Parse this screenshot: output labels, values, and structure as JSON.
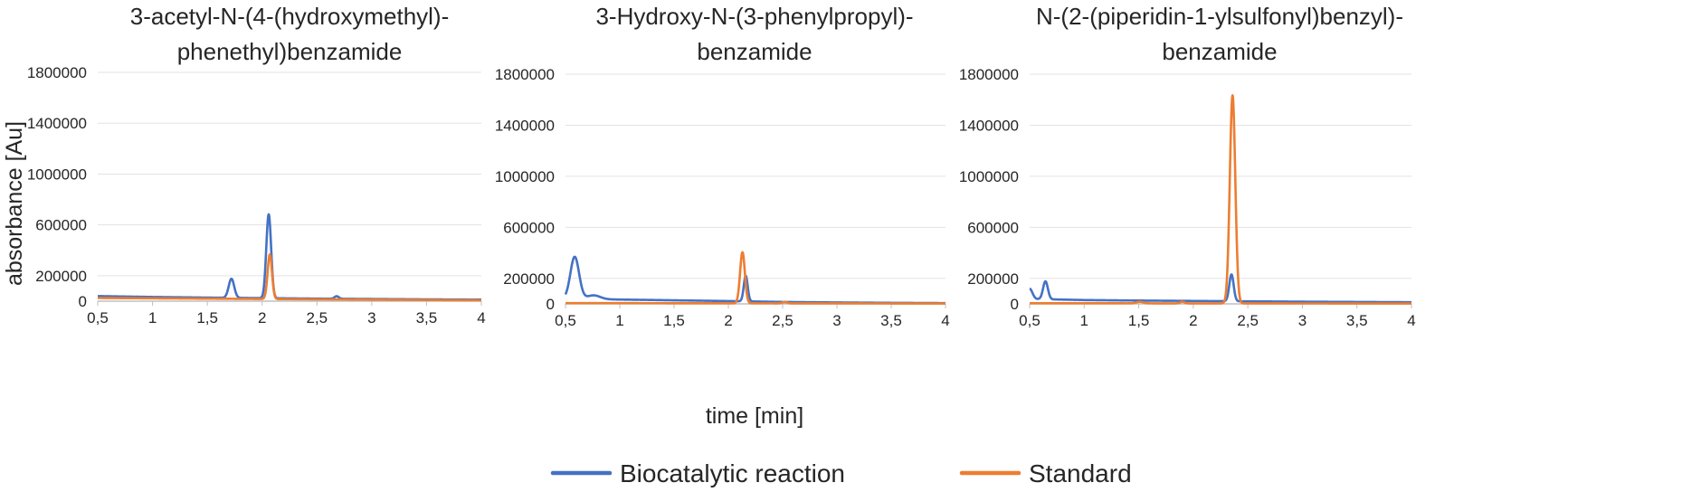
{
  "figure": {
    "ylabel": "absorbance [Au]",
    "xlabel": "time [min]"
  },
  "legend": {
    "placement": "bottom-center",
    "items": [
      {
        "label": "Biocatalytic reaction",
        "color": "#4472C4"
      },
      {
        "label": "Standard",
        "color": "#ED7D31"
      }
    ]
  },
  "chart_data": [
    {
      "type": "line",
      "title_lines": [
        "3-acetyl-N-(4-(hydroxymethyl)-",
        "phenethyl)benzamide"
      ],
      "xlim": [
        0.5,
        4
      ],
      "ylim": [
        0,
        1800000
      ],
      "x_ticks": [
        "0,5",
        "1",
        "1,5",
        "2",
        "2,5",
        "3",
        "3,5",
        "4"
      ],
      "y_ticks": [
        "0",
        "200000",
        "600000",
        "1000000",
        "1400000",
        "1800000"
      ],
      "y_tick_values": [
        0,
        200000,
        600000,
        1000000,
        1400000,
        1800000
      ],
      "grid": true,
      "series": [
        {
          "name": "Biocatalytic reaction",
          "color": "#4472C4",
          "baseline": [
            [
              0.5,
              40000
            ],
            [
              1.0,
              33000
            ],
            [
              1.5,
              28000
            ],
            [
              2.0,
              24000
            ],
            [
              2.5,
              20000
            ],
            [
              3.0,
              17000
            ],
            [
              3.5,
              14000
            ],
            [
              4.0,
              12000
            ]
          ],
          "peaks": [
            {
              "x": 1.72,
              "height": 150000,
              "width": 0.025
            },
            {
              "x": 2.06,
              "height": 660000,
              "width": 0.022
            },
            {
              "x": 2.68,
              "height": 20000,
              "width": 0.02
            }
          ]
        },
        {
          "name": "Standard",
          "color": "#ED7D31",
          "baseline": [
            [
              0.5,
              25000
            ],
            [
              4.0,
              7000
            ]
          ],
          "peaks": [
            {
              "x": 2.07,
              "height": 350000,
              "width": 0.02
            }
          ]
        }
      ]
    },
    {
      "type": "line",
      "title_lines": [
        "3-Hydroxy-N-(3-phenylpropyl)-",
        "benzamide"
      ],
      "xlim": [
        0.5,
        4
      ],
      "ylim": [
        0,
        1800000
      ],
      "x_ticks": [
        "0,5",
        "1",
        "1,5",
        "2",
        "2,5",
        "3",
        "3,5",
        "4"
      ],
      "y_ticks": [
        "0",
        "200000",
        "600000",
        "1000000",
        "1400000",
        "1800000"
      ],
      "y_tick_values": [
        0,
        200000,
        600000,
        1000000,
        1400000,
        1800000
      ],
      "grid": true,
      "series": [
        {
          "name": "Biocatalytic reaction",
          "color": "#4472C4",
          "baseline": [
            [
              0.5,
              40000
            ],
            [
              1.0,
              34000
            ],
            [
              1.5,
              28000
            ],
            [
              2.0,
              22000
            ],
            [
              2.5,
              15000
            ],
            [
              3.0,
              11000
            ],
            [
              3.5,
              8000
            ],
            [
              4.0,
              6000
            ]
          ],
          "peaks": [
            {
              "x": 0.585,
              "height": 330000,
              "width": 0.04
            },
            {
              "x": 0.76,
              "height": 30000,
              "width": 0.06
            },
            {
              "x": 2.16,
              "height": 200000,
              "width": 0.018
            }
          ]
        },
        {
          "name": "Standard",
          "color": "#ED7D31",
          "baseline": [
            [
              0.5,
              6000
            ],
            [
              4.0,
              3000
            ]
          ],
          "peaks": [
            {
              "x": 2.13,
              "height": 400000,
              "width": 0.022
            },
            {
              "x": 2.52,
              "height": 12000,
              "width": 0.02
            }
          ]
        }
      ]
    },
    {
      "type": "line",
      "title_lines": [
        "N-(2-(piperidin-1-ylsulfonyl)benzyl)-",
        "benzamide"
      ],
      "xlim": [
        0.5,
        4
      ],
      "ylim": [
        0,
        1800000
      ],
      "x_ticks": [
        "0,5",
        "1",
        "1,5",
        "2",
        "2,5",
        "3",
        "3,5",
        "4"
      ],
      "y_ticks": [
        "0",
        "200000",
        "600000",
        "1000000",
        "1400000",
        "1800000"
      ],
      "y_tick_values": [
        0,
        200000,
        600000,
        1000000,
        1400000,
        1800000
      ],
      "grid": true,
      "series": [
        {
          "name": "Biocatalytic reaction",
          "color": "#4472C4",
          "baseline": [
            [
              0.5,
              50000
            ],
            [
              0.56,
              38000
            ],
            [
              1.0,
              30000
            ],
            [
              1.5,
              26000
            ],
            [
              2.0,
              23000
            ],
            [
              2.5,
              20000
            ],
            [
              3.0,
              17000
            ],
            [
              3.5,
              15000
            ],
            [
              4.0,
              13000
            ]
          ],
          "peaks": [
            {
              "x": 0.5,
              "height": 70000,
              "width": 0.025
            },
            {
              "x": 0.645,
              "height": 140000,
              "width": 0.022
            },
            {
              "x": 2.35,
              "height": 210000,
              "width": 0.02
            }
          ]
        },
        {
          "name": "Standard",
          "color": "#ED7D31",
          "baseline": [
            [
              0.5,
              5000
            ],
            [
              4.0,
              3000
            ]
          ],
          "peaks": [
            {
              "x": 1.51,
              "height": 12000,
              "width": 0.03
            },
            {
              "x": 1.9,
              "height": 12000,
              "width": 0.02
            },
            {
              "x": 2.36,
              "height": 1630000,
              "width": 0.025
            }
          ]
        }
      ]
    }
  ]
}
